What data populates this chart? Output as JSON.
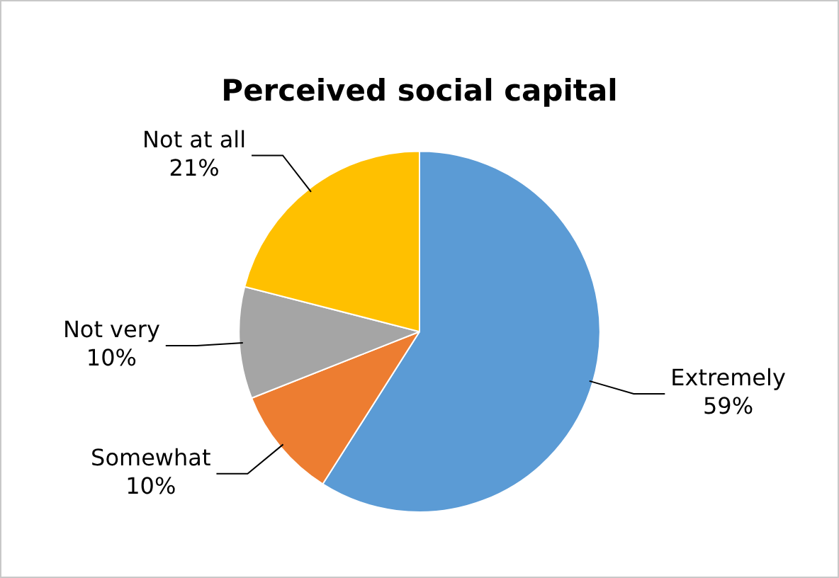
{
  "chart_data": {
    "type": "pie",
    "title": "Perceived social capital",
    "categories": [
      "Extremely",
      "Somewhat",
      "Not very",
      "Not at all"
    ],
    "values": [
      59,
      10,
      10,
      21
    ],
    "colors": [
      "#5b9bd5",
      "#ed7d31",
      "#a5a5a5",
      "#ffc000"
    ],
    "value_labels": [
      "59%",
      "10%",
      "10%",
      "21%"
    ],
    "legend": false
  }
}
